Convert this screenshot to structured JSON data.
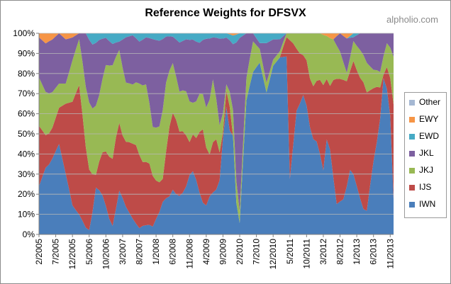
{
  "title": "Reference Weights for DFSVX",
  "watermark": "alpholio.com",
  "chart_data": {
    "type": "area",
    "stacked": true,
    "title": "Reference Weights for DFSVX",
    "xlabel": "",
    "ylabel": "",
    "ylim": [
      0,
      100
    ],
    "yticks": [
      "0%",
      "10%",
      "20%",
      "30%",
      "40%",
      "50%",
      "60%",
      "70%",
      "80%",
      "90%",
      "100%"
    ],
    "xtick_labels": [
      "2/2005",
      "7/2005",
      "12/2005",
      "5/2006",
      "10/2006",
      "3/2007",
      "8/2007",
      "1/2008",
      "6/2008",
      "11/2008",
      "4/2009",
      "9/2009",
      "2/2010",
      "7/2010",
      "12/2010",
      "5/2011",
      "10/2011",
      "3/2012",
      "8/2012",
      "1/2013",
      "6/2013",
      "11/2013"
    ],
    "grid": true,
    "legend_position": "right",
    "months": 106,
    "series": [
      {
        "name": "IWN",
        "color": "#4a7ebb",
        "keyframes": [
          [
            0,
            24
          ],
          [
            2,
            33
          ],
          [
            4,
            37
          ],
          [
            6,
            45
          ],
          [
            8,
            30
          ],
          [
            10,
            14
          ],
          [
            12,
            10
          ],
          [
            14,
            3
          ],
          [
            15,
            2
          ],
          [
            17,
            22
          ],
          [
            19,
            18
          ],
          [
            21,
            7
          ],
          [
            22,
            4
          ],
          [
            24,
            21
          ],
          [
            26,
            14
          ],
          [
            28,
            8
          ],
          [
            30,
            3
          ],
          [
            31,
            4
          ],
          [
            33,
            5
          ],
          [
            34,
            4
          ],
          [
            36,
            12
          ],
          [
            38,
            22
          ],
          [
            40,
            27
          ],
          [
            42,
            25
          ],
          [
            44,
            24
          ],
          [
            46,
            30
          ],
          [
            48,
            22
          ],
          [
            50,
            16
          ],
          [
            52,
            20
          ],
          [
            54,
            30
          ],
          [
            56,
            60
          ],
          [
            58,
            45
          ],
          [
            59,
            12
          ],
          [
            60,
            5
          ],
          [
            62,
            60
          ],
          [
            64,
            80
          ],
          [
            66,
            88
          ],
          [
            68,
            72
          ],
          [
            70,
            83
          ],
          [
            72,
            88
          ],
          [
            74,
            92
          ],
          [
            75,
            28
          ],
          [
            77,
            60
          ],
          [
            79,
            70
          ],
          [
            81,
            44
          ],
          [
            83,
            46
          ],
          [
            85,
            30
          ],
          [
            86,
            55
          ],
          [
            87,
            40
          ],
          [
            89,
            16
          ],
          [
            91,
            20
          ],
          [
            93,
            36
          ],
          [
            95,
            25
          ],
          [
            97,
            14
          ],
          [
            98,
            12
          ],
          [
            100,
            40
          ],
          [
            102,
            60
          ],
          [
            103,
            85
          ],
          [
            105,
            62
          ],
          [
            106,
            15
          ],
          [
            107,
            33
          ]
        ]
      },
      {
        "name": "IJS",
        "color": "#be4b48",
        "keyframes": [
          [
            0,
            30
          ],
          [
            2,
            16
          ],
          [
            4,
            15
          ],
          [
            6,
            18
          ],
          [
            8,
            35
          ],
          [
            10,
            50
          ],
          [
            12,
            65
          ],
          [
            14,
            36
          ],
          [
            16,
            20
          ],
          [
            17,
            6
          ],
          [
            19,
            20
          ],
          [
            21,
            28
          ],
          [
            23,
            35
          ],
          [
            25,
            30
          ],
          [
            27,
            36
          ],
          [
            29,
            40
          ],
          [
            31,
            30
          ],
          [
            33,
            32
          ],
          [
            35,
            20
          ],
          [
            37,
            12
          ],
          [
            39,
            45
          ],
          [
            41,
            48
          ],
          [
            43,
            36
          ],
          [
            45,
            15
          ],
          [
            47,
            20
          ],
          [
            49,
            44
          ],
          [
            51,
            20
          ],
          [
            53,
            28
          ],
          [
            55,
            3
          ],
          [
            57,
            12
          ],
          [
            58,
            0
          ],
          [
            60,
            0
          ],
          [
            62,
            0
          ],
          [
            64,
            0
          ],
          [
            66,
            0
          ],
          [
            68,
            0
          ],
          [
            70,
            0
          ],
          [
            72,
            0
          ],
          [
            74,
            10
          ],
          [
            75,
            70
          ],
          [
            77,
            30
          ],
          [
            79,
            20
          ],
          [
            81,
            20
          ],
          [
            83,
            30
          ],
          [
            85,
            40
          ],
          [
            87,
            30
          ],
          [
            89,
            66
          ],
          [
            91,
            68
          ],
          [
            93,
            55
          ],
          [
            95,
            60
          ],
          [
            97,
            70
          ],
          [
            99,
            50
          ],
          [
            101,
            30
          ],
          [
            103,
            2
          ],
          [
            105,
            20
          ],
          [
            106,
            40
          ],
          [
            107,
            20
          ]
        ]
      },
      {
        "name": "JKJ",
        "color": "#98b954",
        "keyframes": [
          [
            0,
            24
          ],
          [
            3,
            20
          ],
          [
            6,
            12
          ],
          [
            8,
            10
          ],
          [
            10,
            20
          ],
          [
            12,
            23
          ],
          [
            14,
            27
          ],
          [
            16,
            35
          ],
          [
            18,
            30
          ],
          [
            20,
            38
          ],
          [
            22,
            44
          ],
          [
            24,
            35
          ],
          [
            26,
            30
          ],
          [
            28,
            30
          ],
          [
            30,
            34
          ],
          [
            32,
            38
          ],
          [
            34,
            25
          ],
          [
            36,
            30
          ],
          [
            38,
            42
          ],
          [
            40,
            30
          ],
          [
            42,
            26
          ],
          [
            44,
            22
          ],
          [
            46,
            15
          ],
          [
            48,
            20
          ],
          [
            50,
            22
          ],
          [
            52,
            30
          ],
          [
            54,
            15
          ],
          [
            56,
            3
          ],
          [
            58,
            12
          ],
          [
            60,
            5
          ],
          [
            62,
            10
          ],
          [
            64,
            15
          ],
          [
            66,
            7
          ],
          [
            68,
            5
          ],
          [
            70,
            3
          ],
          [
            72,
            3
          ],
          [
            74,
            2
          ],
          [
            76,
            5
          ],
          [
            78,
            10
          ],
          [
            80,
            12
          ],
          [
            82,
            25
          ],
          [
            84,
            22
          ],
          [
            86,
            25
          ],
          [
            88,
            20
          ],
          [
            90,
            15
          ],
          [
            92,
            5
          ],
          [
            94,
            10
          ],
          [
            96,
            15
          ],
          [
            98,
            15
          ],
          [
            100,
            10
          ],
          [
            102,
            8
          ],
          [
            104,
            12
          ],
          [
            106,
            20
          ],
          [
            107,
            5
          ]
        ]
      },
      {
        "name": "JKL",
        "color": "#7d60a0",
        "keyframes": [
          [
            0,
            20
          ],
          [
            3,
            26
          ],
          [
            6,
            25
          ],
          [
            8,
            22
          ],
          [
            10,
            11
          ],
          [
            12,
            3
          ],
          [
            14,
            24
          ],
          [
            16,
            34
          ],
          [
            18,
            25
          ],
          [
            20,
            12
          ],
          [
            22,
            10
          ],
          [
            24,
            4
          ],
          [
            26,
            23
          ],
          [
            28,
            25
          ],
          [
            30,
            20
          ],
          [
            32,
            23
          ],
          [
            34,
            45
          ],
          [
            36,
            46
          ],
          [
            38,
            28
          ],
          [
            40,
            16
          ],
          [
            42,
            32
          ],
          [
            44,
            26
          ],
          [
            46,
            30
          ],
          [
            48,
            27
          ],
          [
            50,
            38
          ],
          [
            52,
            20
          ],
          [
            54,
            48
          ],
          [
            56,
            22
          ],
          [
            58,
            30
          ],
          [
            60,
            76
          ],
          [
            62,
            20
          ],
          [
            64,
            4
          ],
          [
            66,
            3
          ],
          [
            68,
            20
          ],
          [
            70,
            10
          ],
          [
            72,
            6
          ],
          [
            74,
            0
          ],
          [
            76,
            0
          ],
          [
            78,
            0
          ],
          [
            80,
            0
          ],
          [
            82,
            0
          ],
          [
            84,
            0
          ],
          [
            86,
            0
          ],
          [
            88,
            0
          ],
          [
            90,
            10
          ],
          [
            92,
            20
          ],
          [
            94,
            2
          ],
          [
            96,
            9
          ],
          [
            98,
            15
          ],
          [
            100,
            20
          ],
          [
            102,
            20
          ],
          [
            104,
            5
          ],
          [
            106,
            10
          ],
          [
            107,
            40
          ]
        ]
      },
      {
        "name": "EWD",
        "color": "#46aac5",
        "keyframes": [
          [
            0,
            0
          ],
          [
            8,
            0
          ],
          [
            10,
            0
          ],
          [
            14,
            0
          ],
          [
            16,
            6
          ],
          [
            18,
            3
          ],
          [
            20,
            2
          ],
          [
            22,
            5
          ],
          [
            24,
            4
          ],
          [
            26,
            2
          ],
          [
            28,
            1
          ],
          [
            30,
            4
          ],
          [
            32,
            2
          ],
          [
            34,
            3
          ],
          [
            36,
            4
          ],
          [
            38,
            2
          ],
          [
            40,
            2
          ],
          [
            42,
            6
          ],
          [
            44,
            3
          ],
          [
            46,
            3
          ],
          [
            48,
            5
          ],
          [
            50,
            3
          ],
          [
            52,
            2
          ],
          [
            54,
            3
          ],
          [
            56,
            2
          ],
          [
            58,
            4
          ],
          [
            60,
            2
          ],
          [
            62,
            0
          ],
          [
            64,
            0
          ],
          [
            66,
            5
          ],
          [
            68,
            5
          ],
          [
            70,
            3
          ],
          [
            72,
            3
          ],
          [
            74,
            0
          ],
          [
            76,
            0
          ],
          [
            80,
            0
          ],
          [
            84,
            0
          ],
          [
            88,
            0
          ],
          [
            90,
            0
          ],
          [
            92,
            0
          ],
          [
            94,
            2
          ],
          [
            96,
            0
          ],
          [
            98,
            0
          ],
          [
            100,
            0
          ],
          [
            102,
            0
          ],
          [
            104,
            0
          ],
          [
            107,
            0
          ]
        ]
      },
      {
        "name": "EWY",
        "color": "#f69546",
        "keyframes": [
          [
            0,
            2
          ],
          [
            2,
            5
          ],
          [
            4,
            3
          ],
          [
            6,
            0
          ],
          [
            8,
            3
          ],
          [
            10,
            2
          ],
          [
            12,
            0
          ],
          [
            16,
            0
          ],
          [
            20,
            0
          ],
          [
            24,
            0
          ],
          [
            28,
            0
          ],
          [
            32,
            0
          ],
          [
            36,
            0
          ],
          [
            40,
            0
          ],
          [
            44,
            0
          ],
          [
            48,
            0
          ],
          [
            52,
            0
          ],
          [
            56,
            0
          ],
          [
            58,
            1
          ],
          [
            60,
            0
          ],
          [
            64,
            0
          ],
          [
            68,
            0
          ],
          [
            72,
            0
          ],
          [
            76,
            0
          ],
          [
            80,
            0
          ],
          [
            84,
            0
          ],
          [
            88,
            3
          ],
          [
            90,
            0
          ],
          [
            92,
            3
          ],
          [
            94,
            0
          ],
          [
            96,
            0
          ],
          [
            100,
            0
          ],
          [
            104,
            0
          ],
          [
            107,
            0
          ]
        ]
      },
      {
        "name": "Other",
        "color": "#a5b8d3",
        "keyframes": [
          [
            0,
            0
          ],
          [
            107,
            0
          ]
        ]
      }
    ]
  }
}
